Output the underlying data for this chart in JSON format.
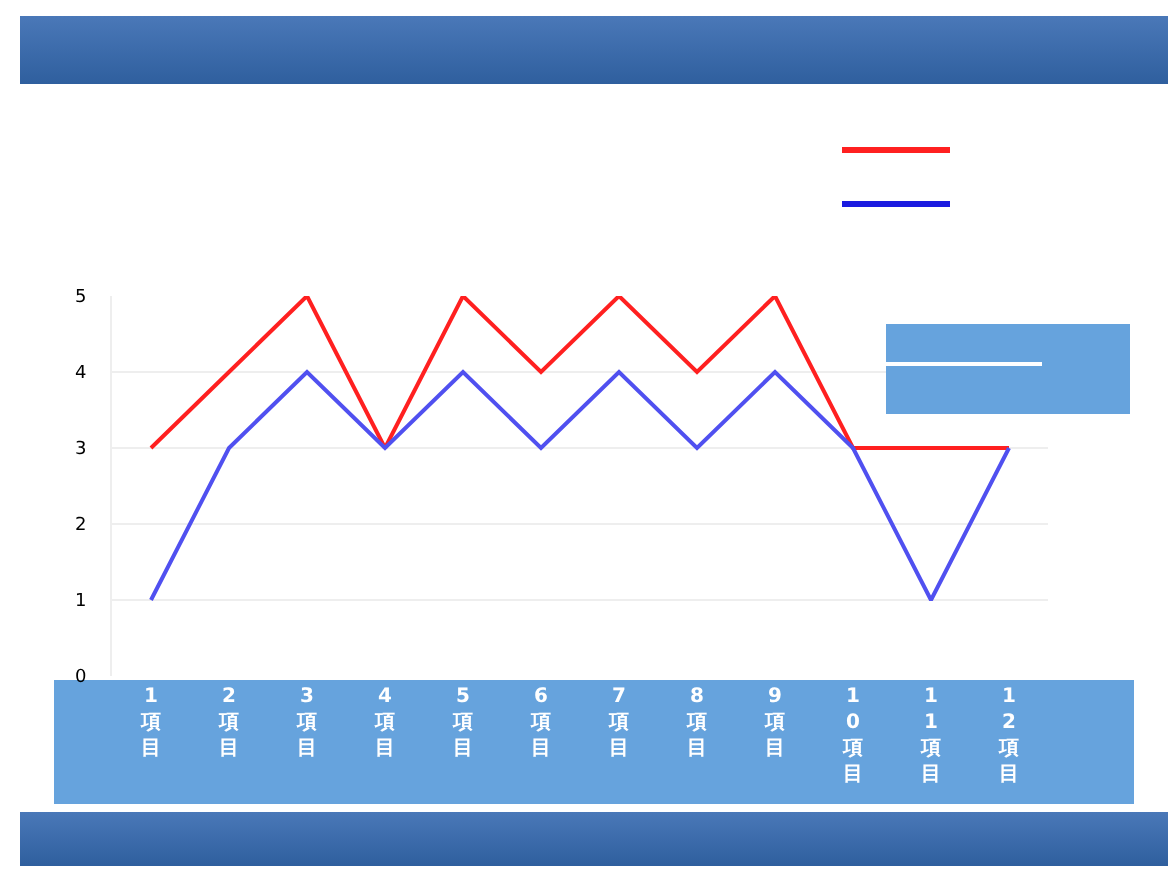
{
  "chart_data": {
    "type": "line",
    "categories": [
      "1項目",
      "2項目",
      "3項目",
      "4項目",
      "5項目",
      "6項目",
      "7項目",
      "8項目",
      "9項目",
      "10項目",
      "11項目",
      "12項目"
    ],
    "series": [
      {
        "color": "#ff2020",
        "values": [
          3,
          4,
          5,
          3,
          5,
          4,
          5,
          4,
          5,
          3,
          3,
          3
        ]
      },
      {
        "color": "#5050f0",
        "values": [
          1,
          3,
          4,
          3,
          4,
          3,
          4,
          3,
          4,
          3,
          1,
          3
        ]
      }
    ],
    "ylim": [
      0,
      5
    ],
    "yticks": [
      0,
      1,
      2,
      3,
      4,
      5
    ],
    "grid": "y",
    "marker": "none",
    "line_style": "solid"
  }
}
